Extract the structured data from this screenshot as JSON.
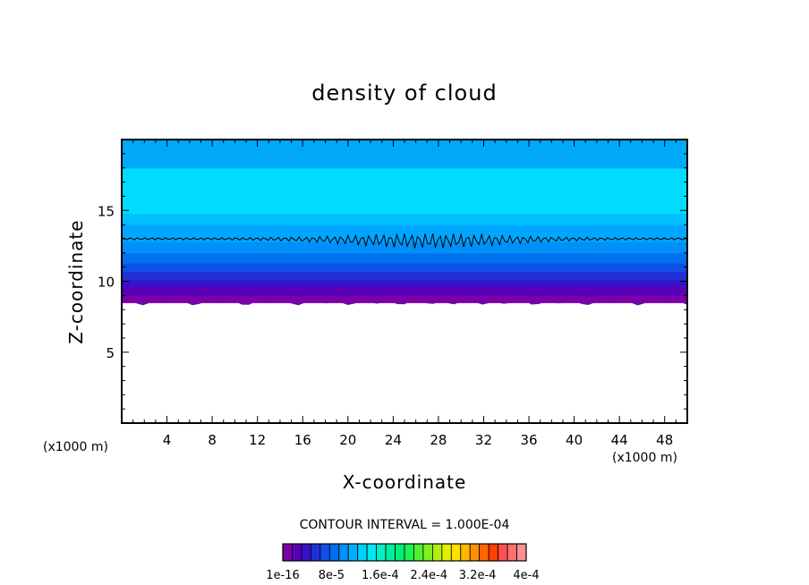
{
  "chart_data": {
    "type": "heatmap",
    "title": "density of cloud",
    "xlabel": "X-coordinate",
    "ylabel": "Z-coordinate",
    "x_unit_left": "(x1000 m)",
    "x_unit_right": "(x1000 m)",
    "xlim": [
      0,
      50
    ],
    "ylim": [
      0,
      20
    ],
    "x_ticks": [
      4,
      8,
      12,
      16,
      20,
      24,
      28,
      32,
      36,
      40,
      44,
      48
    ],
    "x_tick_labels": [
      "4",
      "8",
      "12",
      "16",
      "20",
      "24",
      "28",
      "32",
      "36",
      "40",
      "44",
      "48"
    ],
    "y_ticks": [
      5,
      10,
      15
    ],
    "y_tick_labels": [
      "5",
      "10",
      "15"
    ],
    "contour_interval_text": "CONTOUR INTERVAL = 1.000E-04",
    "colorbar_labels": [
      "1e-16",
      "8e-5",
      "1.6e-4",
      "2.4e-4",
      "3.2e-4",
      "4e-4"
    ],
    "colorbar_colors": [
      "#7a00a8",
      "#5a00b8",
      "#3a10c8",
      "#2030d8",
      "#1050e8",
      "#0070f0",
      "#0090f8",
      "#00b0ff",
      "#00d0ff",
      "#00e8f0",
      "#00f0c8",
      "#00f0a0",
      "#00f078",
      "#20f050",
      "#50f030",
      "#80f020",
      "#b0f010",
      "#e0f000",
      "#ffe000",
      "#ffb800",
      "#ff9000",
      "#ff6800",
      "#ff4000",
      "#ff5050",
      "#ff7070",
      "#ff9090"
    ],
    "bands": [
      {
        "z_bottom": 8.5,
        "z_top": 9.0,
        "color": "#7a00a8"
      },
      {
        "z_bottom": 9.0,
        "z_top": 9.6,
        "color": "#5a00b8"
      },
      {
        "z_bottom": 9.6,
        "z_top": 10.1,
        "color": "#3a10c8"
      },
      {
        "z_bottom": 10.1,
        "z_top": 10.7,
        "color": "#2030d8"
      },
      {
        "z_bottom": 10.7,
        "z_top": 11.3,
        "color": "#1050e8"
      },
      {
        "z_bottom": 11.3,
        "z_top": 12.0,
        "color": "#0070f0"
      },
      {
        "z_bottom": 12.0,
        "z_top": 12.8,
        "color": "#0090f8"
      },
      {
        "z_bottom": 12.8,
        "z_top": 14.0,
        "color": "#00a6ff"
      },
      {
        "z_bottom": 14.0,
        "z_top": 14.8,
        "color": "#00c0ff"
      },
      {
        "z_bottom": 14.8,
        "z_top": 18.0,
        "color": "#00dcff"
      },
      {
        "z_bottom": 18.0,
        "z_top": 20.0,
        "color": "#00a8f8"
      }
    ],
    "contour_level_line_z": 13.0,
    "grid": false,
    "legend": "colorbar-bottom"
  }
}
